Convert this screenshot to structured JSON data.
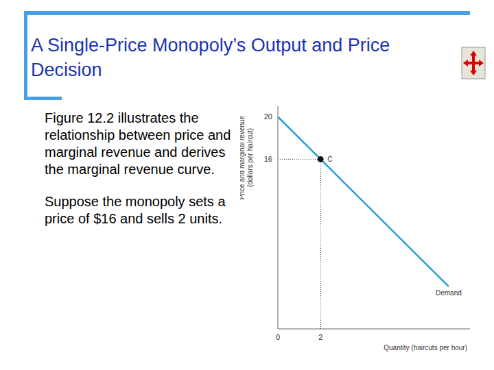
{
  "slide": {
    "title": "A Single-Price Monopoly’s Output and Price Decision",
    "paragraphs": [
      "Figure 12.2 illustrates the relationship between price and marginal revenue and derives the marginal revenue curve.",
      "Suppose the monopoly sets a price of $16 and sells 2 units."
    ]
  },
  "chart_data": {
    "type": "line",
    "x_label": "Quantity (haircuts per hour)",
    "y_label": "Price and marginal revenue (dollars per haircut)",
    "x": [
      0,
      8
    ],
    "series": [
      {
        "name": "Demand",
        "color": "#2a9fd8",
        "values": [
          20,
          4
        ],
        "marker": "none"
      }
    ],
    "xlim": [
      0,
      9
    ],
    "ylim": [
      0,
      21
    ],
    "xticks": [
      0,
      2
    ],
    "yticks": [
      16,
      20
    ],
    "annotations": [
      {
        "x": 2,
        "y": 16,
        "label": "C"
      }
    ],
    "grid": false
  }
}
